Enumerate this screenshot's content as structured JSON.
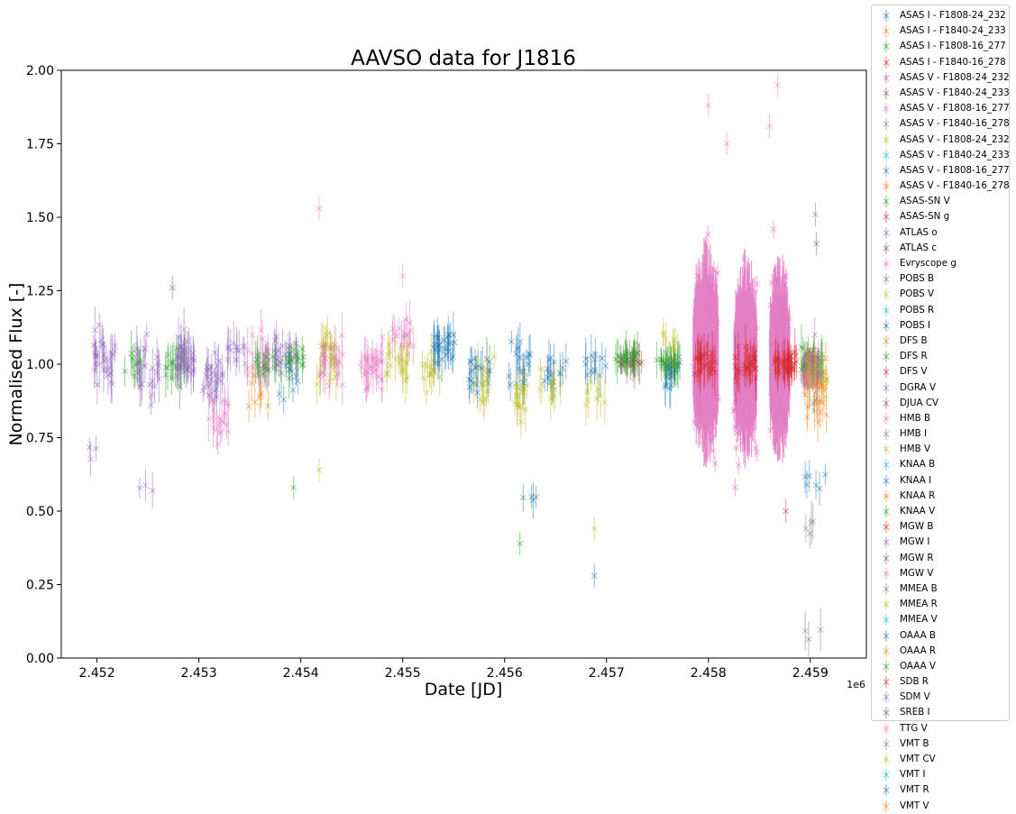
{
  "chart_data": {
    "type": "scatter",
    "title": "AAVSO data for J1816",
    "xlabel": "Date [JD]",
    "ylabel": "Normalised Flux [-]",
    "x_offset_label": "1e6",
    "xlim": [
      2.45165,
      2.45955
    ],
    "ylim": [
      0.0,
      2.0
    ],
    "x_ticks": [
      2.452,
      2.453,
      2.454,
      2.455,
      2.456,
      2.457,
      2.458,
      2.459
    ],
    "x_tick_labels": [
      "2.452",
      "2.453",
      "2.454",
      "2.455",
      "2.456",
      "2.457",
      "2.458",
      "2.459"
    ],
    "y_ticks": [
      0.0,
      0.25,
      0.5,
      0.75,
      1.0,
      1.25,
      1.5,
      1.75,
      2.0
    ],
    "y_tick_labels": [
      "0.00",
      "0.25",
      "0.50",
      "0.75",
      "1.00",
      "1.25",
      "1.50",
      "1.75",
      "2.00"
    ],
    "grid": false,
    "legend_position": "outside right",
    "marker": "x with error bars",
    "palette": [
      "#1f77b4",
      "#ff7f0e",
      "#2ca02c",
      "#d62728",
      "#9467bd",
      "#8c564b",
      "#e377c2",
      "#7f7f7f",
      "#bcbd22",
      "#17becf"
    ],
    "legend": [
      {
        "name": "ASAS I - F1808-24_232",
        "color": "#1f77b4"
      },
      {
        "name": "ASAS I - F1840-24_233",
        "color": "#ff7f0e"
      },
      {
        "name": "ASAS I - F1808-16_277",
        "color": "#2ca02c"
      },
      {
        "name": "ASAS I - F1840-16_278",
        "color": "#d62728"
      },
      {
        "name": "ASAS V - F1808-24_232",
        "color": "#9467bd"
      },
      {
        "name": "ASAS V - F1840-24_233",
        "color": "#8c564b"
      },
      {
        "name": "ASAS V - F1808-16_277",
        "color": "#e377c2"
      },
      {
        "name": "ASAS V - F1840-16_278",
        "color": "#7f7f7f"
      },
      {
        "name": "ASAS V - F1808-24_232",
        "color": "#bcbd22"
      },
      {
        "name": "ASAS V - F1840-24_233",
        "color": "#17becf"
      },
      {
        "name": "ASAS V - F1808-16_277",
        "color": "#1f77b4"
      },
      {
        "name": "ASAS V - F1840-16_278",
        "color": "#ff7f0e"
      },
      {
        "name": "ASAS-SN V",
        "color": "#2ca02c"
      },
      {
        "name": "ASAS-SN g",
        "color": "#d62728"
      },
      {
        "name": "ATLAS o",
        "color": "#9467bd"
      },
      {
        "name": "ATLAS c",
        "color": "#8c564b"
      },
      {
        "name": "Evryscope g",
        "color": "#e377c2"
      },
      {
        "name": "POBS B",
        "color": "#7f7f7f"
      },
      {
        "name": "POBS V",
        "color": "#bcbd22"
      },
      {
        "name": "POBS R",
        "color": "#17becf"
      },
      {
        "name": "POBS I",
        "color": "#1f77b4"
      },
      {
        "name": "DFS B",
        "color": "#ff7f0e"
      },
      {
        "name": "DFS R",
        "color": "#2ca02c"
      },
      {
        "name": "DFS V",
        "color": "#d62728"
      },
      {
        "name": "DGRA V",
        "color": "#9467bd"
      },
      {
        "name": "DJUA CV",
        "color": "#8c564b"
      },
      {
        "name": "HMB B",
        "color": "#e377c2"
      },
      {
        "name": "HMB I",
        "color": "#7f7f7f"
      },
      {
        "name": "HMB V",
        "color": "#bcbd22"
      },
      {
        "name": "KNAA B",
        "color": "#17becf"
      },
      {
        "name": "KNAA I",
        "color": "#1f77b4"
      },
      {
        "name": "KNAA R",
        "color": "#ff7f0e"
      },
      {
        "name": "KNAA V",
        "color": "#2ca02c"
      },
      {
        "name": "MGW B",
        "color": "#d62728"
      },
      {
        "name": "MGW I",
        "color": "#9467bd"
      },
      {
        "name": "MGW R",
        "color": "#8c564b"
      },
      {
        "name": "MGW V",
        "color": "#e377c2"
      },
      {
        "name": "MMEA B",
        "color": "#7f7f7f"
      },
      {
        "name": "MMEA R",
        "color": "#bcbd22"
      },
      {
        "name": "MMEA V",
        "color": "#17becf"
      },
      {
        "name": "OAAA B",
        "color": "#1f77b4"
      },
      {
        "name": "OAAA R",
        "color": "#ff7f0e"
      },
      {
        "name": "OAAA V",
        "color": "#2ca02c"
      },
      {
        "name": "SDB R",
        "color": "#d62728"
      },
      {
        "name": "SDM V",
        "color": "#9467bd"
      },
      {
        "name": "SREB I",
        "color": "#8c564b"
      },
      {
        "name": "TTG V",
        "color": "#e377c2"
      },
      {
        "name": "VMT B",
        "color": "#7f7f7f"
      },
      {
        "name": "VMT CV",
        "color": "#bcbd22"
      },
      {
        "name": "VMT I",
        "color": "#17becf"
      },
      {
        "name": "VMT R",
        "color": "#1f77b4"
      },
      {
        "name": "VMT V",
        "color": "#ff7f0e"
      }
    ],
    "clusters": [
      {
        "x": 2.45207,
        "y": 1.03,
        "spread": 0.13,
        "n": 30,
        "color": "#9467bd"
      },
      {
        "x": 2.452,
        "y": 0.7,
        "spread": 0.05,
        "n": 3,
        "color": "#9467bd"
      },
      {
        "x": 2.45232,
        "y": 1.0,
        "spread": 0.08,
        "n": 10,
        "color": "#2ca02c"
      },
      {
        "x": 2.4525,
        "y": 0.98,
        "spread": 0.15,
        "n": 25,
        "color": "#9467bd"
      },
      {
        "x": 2.45245,
        "y": 0.58,
        "spread": 0.03,
        "n": 3,
        "color": "#9467bd"
      },
      {
        "x": 2.45278,
        "y": 1.0,
        "spread": 0.1,
        "n": 18,
        "color": "#2ca02c"
      },
      {
        "x": 2.45285,
        "y": 1.03,
        "spread": 0.12,
        "n": 35,
        "color": "#9467bd"
      },
      {
        "x": 2.45315,
        "y": 0.95,
        "spread": 0.15,
        "n": 25,
        "color": "#9467bd"
      },
      {
        "x": 2.4532,
        "y": 0.82,
        "spread": 0.12,
        "n": 20,
        "color": "#e377c2"
      },
      {
        "x": 2.45335,
        "y": 1.05,
        "spread": 0.1,
        "n": 12,
        "color": "#9467bd"
      },
      {
        "x": 2.45358,
        "y": 1.02,
        "spread": 0.12,
        "n": 25,
        "color": "#e377c2"
      },
      {
        "x": 2.45365,
        "y": 1.0,
        "spread": 0.1,
        "n": 15,
        "color": "#2ca02c"
      },
      {
        "x": 2.4536,
        "y": 0.9,
        "spread": 0.12,
        "n": 8,
        "color": "#ff7f0e"
      },
      {
        "x": 2.45385,
        "y": 1.05,
        "spread": 0.1,
        "n": 20,
        "color": "#9467bd"
      },
      {
        "x": 2.45392,
        "y": 1.0,
        "spread": 0.1,
        "n": 15,
        "color": "#2ca02c"
      },
      {
        "x": 2.4539,
        "y": 0.95,
        "spread": 0.12,
        "n": 8,
        "color": "#1f77b4"
      },
      {
        "x": 2.45425,
        "y": 1.02,
        "spread": 0.12,
        "n": 25,
        "color": "#bcbd22"
      },
      {
        "x": 2.4543,
        "y": 1.0,
        "spread": 0.12,
        "n": 20,
        "color": "#e377c2"
      },
      {
        "x": 2.4547,
        "y": 1.0,
        "spread": 0.12,
        "n": 30,
        "color": "#e377c2"
      },
      {
        "x": 2.45495,
        "y": 1.0,
        "spread": 0.1,
        "n": 20,
        "color": "#bcbd22"
      },
      {
        "x": 2.455,
        "y": 1.1,
        "spread": 0.12,
        "n": 15,
        "color": "#e377c2"
      },
      {
        "x": 2.4553,
        "y": 0.98,
        "spread": 0.1,
        "n": 15,
        "color": "#bcbd22"
      },
      {
        "x": 2.4554,
        "y": 1.05,
        "spread": 0.1,
        "n": 30,
        "color": "#1f77b4"
      },
      {
        "x": 2.45575,
        "y": 1.0,
        "spread": 0.12,
        "n": 20,
        "color": "#1f77b4"
      },
      {
        "x": 2.4558,
        "y": 0.95,
        "spread": 0.12,
        "n": 15,
        "color": "#bcbd22"
      },
      {
        "x": 2.45615,
        "y": 1.0,
        "spread": 0.12,
        "n": 20,
        "color": "#1f77b4"
      },
      {
        "x": 2.4562,
        "y": 0.9,
        "spread": 0.12,
        "n": 15,
        "color": "#bcbd22"
      },
      {
        "x": 2.4562,
        "y": 0.55,
        "spread": 0.03,
        "n": 4,
        "color": "#1f77b4"
      },
      {
        "x": 2.4565,
        "y": 0.98,
        "spread": 0.1,
        "n": 15,
        "color": "#1f77b4"
      },
      {
        "x": 2.45645,
        "y": 0.9,
        "spread": 0.1,
        "n": 10,
        "color": "#bcbd22"
      },
      {
        "x": 2.4569,
        "y": 1.0,
        "spread": 0.1,
        "n": 12,
        "color": "#1f77b4"
      },
      {
        "x": 2.45688,
        "y": 0.9,
        "spread": 0.08,
        "n": 8,
        "color": "#bcbd22"
      },
      {
        "x": 2.4572,
        "y": 1.02,
        "spread": 0.04,
        "n": 30,
        "color": "#2ca02c"
      },
      {
        "x": 2.45725,
        "y": 1.0,
        "spread": 0.04,
        "n": 10,
        "color": "#8c564b"
      },
      {
        "x": 2.4576,
        "y": 1.0,
        "spread": 0.04,
        "n": 35,
        "color": "#2ca02c"
      },
      {
        "x": 2.4576,
        "y": 1.05,
        "spread": 0.08,
        "n": 8,
        "color": "#bcbd22"
      },
      {
        "x": 2.45768,
        "y": 0.95,
        "spread": 0.1,
        "n": 10,
        "color": "#1f77b4"
      },
      {
        "x": 2.45796,
        "y": 1.0,
        "spread": 0.08,
        "n": 30,
        "color": "#d62728"
      },
      {
        "x": 2.45836,
        "y": 1.0,
        "spread": 0.08,
        "n": 30,
        "color": "#d62728"
      },
      {
        "x": 2.45876,
        "y": 1.0,
        "spread": 0.05,
        "n": 40,
        "color": "#d62728"
      },
      {
        "x": 2.45902,
        "y": 1.0,
        "spread": 0.1,
        "n": 20,
        "color": "#2ca02c"
      },
      {
        "x": 2.45905,
        "y": 0.9,
        "spread": 0.15,
        "n": 25,
        "color": "#ff7f0e"
      },
      {
        "x": 2.45905,
        "y": 1.0,
        "spread": 0.15,
        "n": 15,
        "color": "#7f7f7f"
      },
      {
        "x": 2.45905,
        "y": 0.95,
        "spread": 0.1,
        "n": 10,
        "color": "#bcbd22"
      },
      {
        "x": 2.45905,
        "y": 0.6,
        "spread": 0.05,
        "n": 6,
        "color": "#1f77b4"
      },
      {
        "x": 2.45906,
        "y": 0.45,
        "spread": 0.04,
        "n": 4,
        "color": "#7f7f7f"
      },
      {
        "x": 2.45906,
        "y": 0.09,
        "spread": 0.04,
        "n": 3,
        "color": "#7f7f7f"
      }
    ],
    "dense_blocks": [
      {
        "x_start": 2.45785,
        "x_end": 2.4581,
        "center": 1.02,
        "amp": 0.42,
        "color": "#e377c2"
      },
      {
        "x_start": 2.45825,
        "x_end": 2.45848,
        "center": 1.0,
        "amp": 0.4,
        "color": "#e377c2"
      },
      {
        "x_start": 2.4586,
        "x_end": 2.4588,
        "center": 1.0,
        "amp": 0.4,
        "color": "#e377c2"
      },
      {
        "x_start": 2.45892,
        "x_end": 2.45908,
        "center": 0.98,
        "amp": 0.08,
        "color": "#e377c2"
      }
    ],
    "outliers": [
      {
        "x": 2.45418,
        "y": 1.53,
        "color": "#e377c2"
      },
      {
        "x": 2.45274,
        "y": 1.26,
        "color": "#8c564b"
      },
      {
        "x": 2.45905,
        "y": 1.51,
        "color": "#7f7f7f"
      },
      {
        "x": 2.45906,
        "y": 1.41,
        "color": "#8c564b"
      },
      {
        "x": 2.4586,
        "y": 1.81,
        "color": "#e377c2"
      },
      {
        "x": 2.45818,
        "y": 1.75,
        "color": "#e377c2"
      },
      {
        "x": 2.458,
        "y": 1.88,
        "color": "#e377c2"
      },
      {
        "x": 2.45868,
        "y": 1.95,
        "color": "#e377c2"
      },
      {
        "x": 2.45688,
        "y": 0.28,
        "color": "#1f77b4"
      },
      {
        "x": 2.45688,
        "y": 0.44,
        "color": "#bcbd22"
      },
      {
        "x": 2.45615,
        "y": 0.39,
        "color": "#2ca02c"
      },
      {
        "x": 2.45876,
        "y": 0.5,
        "color": "#d62728"
      },
      {
        "x": 2.45393,
        "y": 0.58,
        "color": "#2ca02c"
      },
      {
        "x": 2.45418,
        "y": 0.64,
        "color": "#bcbd22"
      },
      {
        "x": 2.455,
        "y": 1.3,
        "color": "#e377c2"
      }
    ]
  }
}
